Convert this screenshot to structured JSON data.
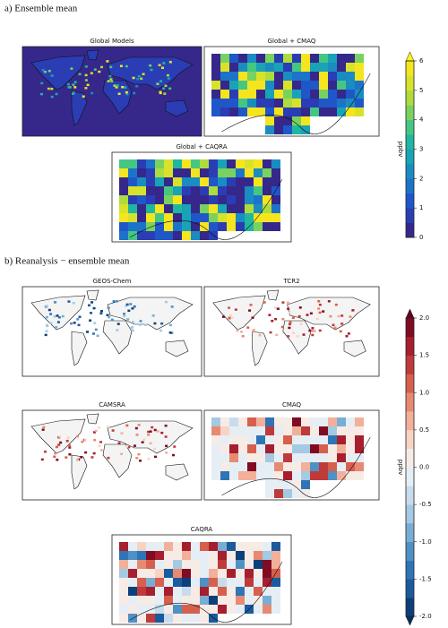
{
  "sections": [
    {
      "title": "a) Ensemble mean",
      "panels": [
        "Global Models",
        "Global + CMAQ",
        "Global + CAQRA"
      ],
      "colorbar": {
        "label": "ppbv",
        "lim": [
          0,
          6
        ],
        "ticks": [
          0,
          1,
          2,
          3,
          4,
          5,
          6
        ],
        "colors": [
          "#35288a",
          "#2a3db4",
          "#2057c8",
          "#1c74c9",
          "#1a8cc2",
          "#19a3b6",
          "#1fb79f",
          "#45c683",
          "#79d25f",
          "#aedc3c",
          "#d8e22a",
          "#f5e51f"
        ],
        "over_color": "#fbf61a"
      }
    },
    {
      "title": "b) Reanalysis − ensemble mean",
      "panels": [
        "GEOS-Chem",
        "TCR2",
        "CAMSRA",
        "CMAQ",
        "CAQRA"
      ],
      "colorbar": {
        "label": "ppbv",
        "lim": [
          -2,
          2
        ],
        "ticks": [
          {
            "value": -2,
            "label": "-2.0"
          },
          {
            "value": -1.5,
            "label": "-1.5"
          },
          {
            "value": -1,
            "label": "-1.0"
          },
          {
            "value": -0.5,
            "label": "-0.5"
          },
          {
            "value": 0,
            "label": "0.0"
          },
          {
            "value": 0.5,
            "label": "0.5"
          },
          {
            "value": 1,
            "label": "1.0"
          },
          {
            "value": 1.5,
            "label": "1.5"
          },
          {
            "value": 2,
            "label": "2.0"
          }
        ],
        "colors": [
          "#0d3f7a",
          "#1b5a9c",
          "#2f74b5",
          "#4f91c4",
          "#79aed3",
          "#a4c9e2",
          "#c7dcec",
          "#e6eef5",
          "#f7ebe6",
          "#f8d3c3",
          "#f2b09a",
          "#e78a72",
          "#d6604d",
          "#bf3a3a",
          "#a51f2e",
          "#7f0c22"
        ],
        "over_color": "#67001f",
        "under_color": "#08305f"
      }
    }
  ]
}
